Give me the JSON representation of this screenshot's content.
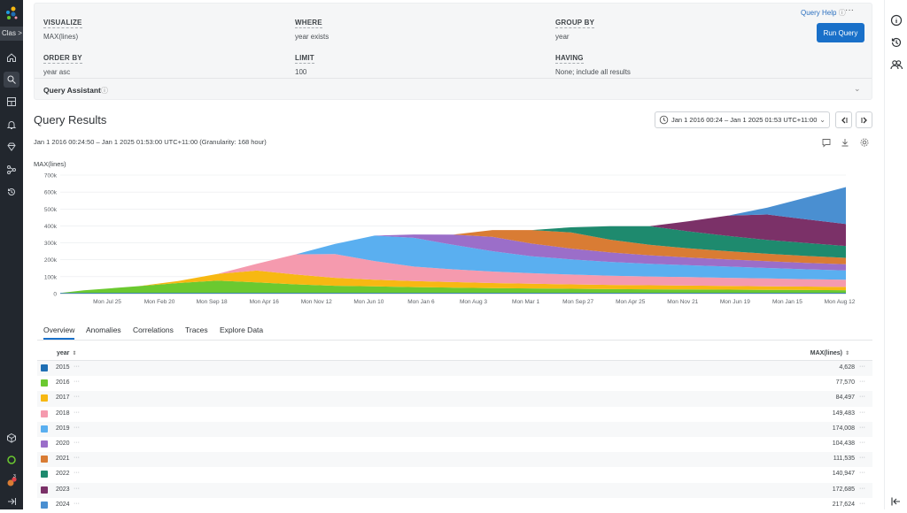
{
  "nav": {
    "env_label": "Clas >",
    "items": [
      "home-icon",
      "query-icon",
      "boards-icon",
      "triggers-icon",
      "slo-icon",
      "service-map-icon",
      "history-icon"
    ],
    "bottom_items": [
      "datasets-icon",
      "status-icon",
      "notifications-icon",
      "collapse-icon"
    ],
    "badge": "3"
  },
  "builder": {
    "visualize_label": "VISUALIZE",
    "visualize_value": "MAX(lines)",
    "where_label": "WHERE",
    "where_value": "year exists",
    "groupby_label": "GROUP BY",
    "groupby_value": "year",
    "orderby_label": "ORDER BY",
    "orderby_value": "year asc",
    "limit_label": "LIMIT",
    "limit_value": "100",
    "having_label": "HAVING",
    "having_value": "None; include all results",
    "help_label": "Query Help",
    "more_label": "···",
    "run_label": "Run Query",
    "assistant_label": "Query Assistant"
  },
  "results": {
    "title": "Query Results",
    "time_range": "Jan 1 2016 00:24 – Jan 1 2025 01:53 UTC+11:00",
    "range_text": "Jan 1 2016 00:24:50 – Jan 1 2025 01:53:00 UTC+11:00 (Granularity: 168 hour)",
    "y_label": "MAX(lines)"
  },
  "chart_data": {
    "type": "area",
    "stacked": true,
    "x_ticks": [
      "Mon Jul 25",
      "Mon Feb 20",
      "Mon Sep 18",
      "Mon Apr 16",
      "Mon Nov 12",
      "Mon Jun 10",
      "Mon Jan 6",
      "Mon Aug 3",
      "Mon Mar 1",
      "Mon Sep 27",
      "Mon Apr 25",
      "Mon Nov 21",
      "Mon Jun 19",
      "Mon Jan 15",
      "Mon Aug 12"
    ],
    "y_ticks": [
      "0",
      "100k",
      "200k",
      "300k",
      "400k",
      "500k",
      "600k",
      "700k"
    ],
    "ylim": [
      0,
      700000
    ],
    "grid": true,
    "time_fraction": [
      0,
      0.03,
      0.1,
      0.15,
      0.2,
      0.25,
      0.3,
      0.35,
      0.4,
      0.45,
      0.5,
      0.55,
      0.6,
      0.65,
      0.7,
      0.75,
      0.8,
      0.85,
      0.9,
      0.95,
      1
    ],
    "series": [
      {
        "name": "2015",
        "color": "#1f6fb4",
        "values": [
          4000,
          4500,
          4600,
          4600,
          4600,
          4600,
          4600,
          4600,
          4600,
          4600,
          4600,
          4600,
          4600,
          4600,
          4600,
          4600,
          4600,
          4600,
          4600,
          4600,
          4628
        ]
      },
      {
        "name": "2016",
        "color": "#6bc930",
        "values": [
          0,
          15000,
          40000,
          58000,
          72000,
          62000,
          50000,
          42000,
          38000,
          34000,
          31000,
          28000,
          26000,
          24000,
          22000,
          21000,
          20000,
          19000,
          18000,
          17000,
          16000
        ]
      },
      {
        "name": "2017",
        "color": "#f7b812",
        "values": [
          0,
          0,
          0,
          12000,
          40000,
          70000,
          58000,
          47000,
          40000,
          36000,
          33000,
          30000,
          28000,
          26000,
          25000,
          24000,
          23000,
          22000,
          21000,
          20000,
          19000
        ]
      },
      {
        "name": "2018",
        "color": "#f59aae",
        "values": [
          0,
          0,
          0,
          0,
          0,
          40000,
          120000,
          140000,
          110000,
          85000,
          75000,
          68000,
          62000,
          58000,
          54000,
          52000,
          50000,
          48000,
          46000,
          44000,
          43000
        ]
      },
      {
        "name": "2019",
        "color": "#5aaff0",
        "values": [
          0,
          0,
          0,
          0,
          0,
          0,
          0,
          60000,
          150000,
          170000,
          145000,
          120000,
          100000,
          90000,
          82000,
          75000,
          70000,
          66000,
          62000,
          58000,
          55000
        ]
      },
      {
        "name": "2020",
        "color": "#9b6ec9",
        "values": [
          0,
          0,
          0,
          0,
          0,
          0,
          0,
          0,
          0,
          20000,
          60000,
          85000,
          75000,
          64000,
          56000,
          50000,
          46000,
          43000,
          40000,
          38000,
          36000
        ]
      },
      {
        "name": "2021",
        "color": "#d97c34",
        "values": [
          0,
          0,
          0,
          0,
          0,
          0,
          0,
          0,
          0,
          0,
          0,
          40000,
          80000,
          95000,
          75000,
          62000,
          54000,
          48000,
          44000,
          41000,
          38000
        ]
      },
      {
        "name": "2022",
        "color": "#1e8a6e",
        "values": [
          0,
          0,
          0,
          0,
          0,
          0,
          0,
          0,
          0,
          0,
          0,
          0,
          0,
          30000,
          80000,
          110000,
          100000,
          90000,
          82000,
          76000,
          70000
        ]
      },
      {
        "name": "2023",
        "color": "#7b3168",
        "values": [
          0,
          0,
          0,
          0,
          0,
          0,
          0,
          0,
          0,
          0,
          0,
          0,
          0,
          0,
          0,
          0,
          60000,
          120000,
          150000,
          140000,
          130000
        ]
      },
      {
        "name": "2024",
        "color": "#4a8fd1",
        "values": [
          0,
          0,
          0,
          0,
          0,
          0,
          0,
          0,
          0,
          0,
          0,
          0,
          0,
          0,
          0,
          0,
          0,
          0,
          40000,
          130000,
          217624
        ]
      }
    ]
  },
  "tabs": [
    "Overview",
    "Anomalies",
    "Correlations",
    "Traces",
    "Explore Data"
  ],
  "table": {
    "col_year": "year",
    "col_value": "MAX(lines)",
    "rows": [
      {
        "year": "2015",
        "value": "4,628",
        "color": "#1f6fb4"
      },
      {
        "year": "2016",
        "value": "77,570",
        "color": "#6bc930"
      },
      {
        "year": "2017",
        "value": "84,497",
        "color": "#f7b812"
      },
      {
        "year": "2018",
        "value": "149,483",
        "color": "#f59aae"
      },
      {
        "year": "2019",
        "value": "174,008",
        "color": "#5aaff0"
      },
      {
        "year": "2020",
        "value": "104,438",
        "color": "#9b6ec9"
      },
      {
        "year": "2021",
        "value": "111,535",
        "color": "#d97c34"
      },
      {
        "year": "2022",
        "value": "140,947",
        "color": "#1e8a6e"
      },
      {
        "year": "2023",
        "value": "172,685",
        "color": "#7b3168"
      },
      {
        "year": "2024",
        "value": "217,624",
        "color": "#4a8fd1"
      }
    ]
  }
}
